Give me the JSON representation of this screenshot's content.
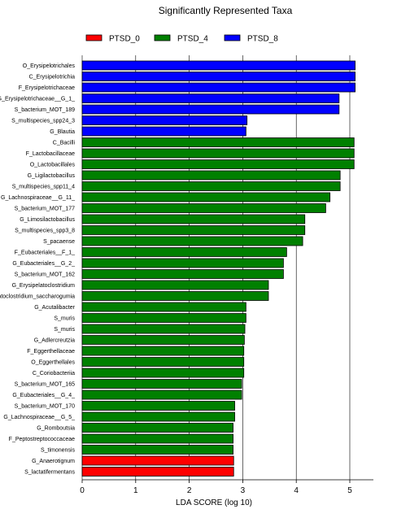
{
  "chart_data": {
    "type": "bar",
    "orientation": "horizontal",
    "title": "Significantly Represented Taxa",
    "xlabel": "LDA SCORE (log 10)",
    "ylabel": "",
    "xlim": [
      0,
      5.3
    ],
    "xticks": [
      0,
      1,
      2,
      3,
      4,
      5
    ],
    "grid": "vertical",
    "legend_position": "top",
    "legend": [
      {
        "name": "PTSD_0",
        "color": "#ff0000"
      },
      {
        "name": "PTSD_4",
        "color": "#008000"
      },
      {
        "name": "PTSD_8",
        "color": "#0000ff"
      }
    ],
    "bars": [
      {
        "label": "O_Erysipelotrichales",
        "value": 5.1,
        "group": "PTSD_8"
      },
      {
        "label": "C_Erysipelotrichia",
        "value": 5.1,
        "group": "PTSD_8"
      },
      {
        "label": "F_Erysipelotrichaceae",
        "value": 5.1,
        "group": "PTSD_8"
      },
      {
        "label": "G_Erysipelotrichaceae__G_1_",
        "value": 4.8,
        "group": "PTSD_8"
      },
      {
        "label": "S_bacterium_MOT_189",
        "value": 4.8,
        "group": "PTSD_8"
      },
      {
        "label": "S_multispecies_spp24_3",
        "value": 3.08,
        "group": "PTSD_8"
      },
      {
        "label": "G_Blautia",
        "value": 3.06,
        "group": "PTSD_8"
      },
      {
        "label": "C_Bacilli",
        "value": 5.08,
        "group": "PTSD_4"
      },
      {
        "label": "F_Lactobacillaceae",
        "value": 5.08,
        "group": "PTSD_4"
      },
      {
        "label": "O_Lactobacillales",
        "value": 5.08,
        "group": "PTSD_4"
      },
      {
        "label": "G_Ligilactobacillus",
        "value": 4.82,
        "group": "PTSD_4"
      },
      {
        "label": "S_multispecies_spp11_4",
        "value": 4.82,
        "group": "PTSD_4"
      },
      {
        "label": "G_Lachnospiraceae__G_11_",
        "value": 4.63,
        "group": "PTSD_4"
      },
      {
        "label": "S_bacterium_MOT_177",
        "value": 4.55,
        "group": "PTSD_4"
      },
      {
        "label": "G_Limosilactobacillus",
        "value": 4.16,
        "group": "PTSD_4"
      },
      {
        "label": "S_multispecies_spp3_8",
        "value": 4.16,
        "group": "PTSD_4"
      },
      {
        "label": "S_pacaense",
        "value": 4.12,
        "group": "PTSD_4"
      },
      {
        "label": "F_Eubacteriales__F_1_",
        "value": 3.82,
        "group": "PTSD_4"
      },
      {
        "label": "G_Eubacteriales__G_2_",
        "value": 3.76,
        "group": "PTSD_4"
      },
      {
        "label": "S_bacterium_MOT_162",
        "value": 3.76,
        "group": "PTSD_4"
      },
      {
        "label": "G_Erysipelatoclostridium",
        "value": 3.48,
        "group": "PTSD_4"
      },
      {
        "label": "S_Erysipelatoclostridium_saccharogumia",
        "value": 3.48,
        "group": "PTSD_4"
      },
      {
        "label": "G_Acutalibacter",
        "value": 3.06,
        "group": "PTSD_4"
      },
      {
        "label": "S_muris",
        "value": 3.06,
        "group": "PTSD_4"
      },
      {
        "label": "S_muris",
        "value": 3.04,
        "group": "PTSD_4"
      },
      {
        "label": "G_Adlercreutzia",
        "value": 3.03,
        "group": "PTSD_4"
      },
      {
        "label": "F_Eggerthellaceae",
        "value": 3.02,
        "group": "PTSD_4"
      },
      {
        "label": "O_Eggerthellales",
        "value": 3.02,
        "group": "PTSD_4"
      },
      {
        "label": "C_Coriobacteriia",
        "value": 3.02,
        "group": "PTSD_4"
      },
      {
        "label": "S_bacterium_MOT_165",
        "value": 2.98,
        "group": "PTSD_4"
      },
      {
        "label": "G_Eubacteriales__G_4_",
        "value": 2.98,
        "group": "PTSD_4"
      },
      {
        "label": "S_bacterium_MOT_170",
        "value": 2.85,
        "group": "PTSD_4"
      },
      {
        "label": "G_Lachnospiraceae__G_5_",
        "value": 2.85,
        "group": "PTSD_4"
      },
      {
        "label": "G_Romboutsia",
        "value": 2.82,
        "group": "PTSD_4"
      },
      {
        "label": "F_Peptostreptococcaceae",
        "value": 2.82,
        "group": "PTSD_4"
      },
      {
        "label": "S_timonensis",
        "value": 2.82,
        "group": "PTSD_4"
      },
      {
        "label": "G_Anaerotignum",
        "value": 2.83,
        "group": "PTSD_0"
      },
      {
        "label": "S_lactatifermentans",
        "value": 2.83,
        "group": "PTSD_0"
      }
    ]
  }
}
